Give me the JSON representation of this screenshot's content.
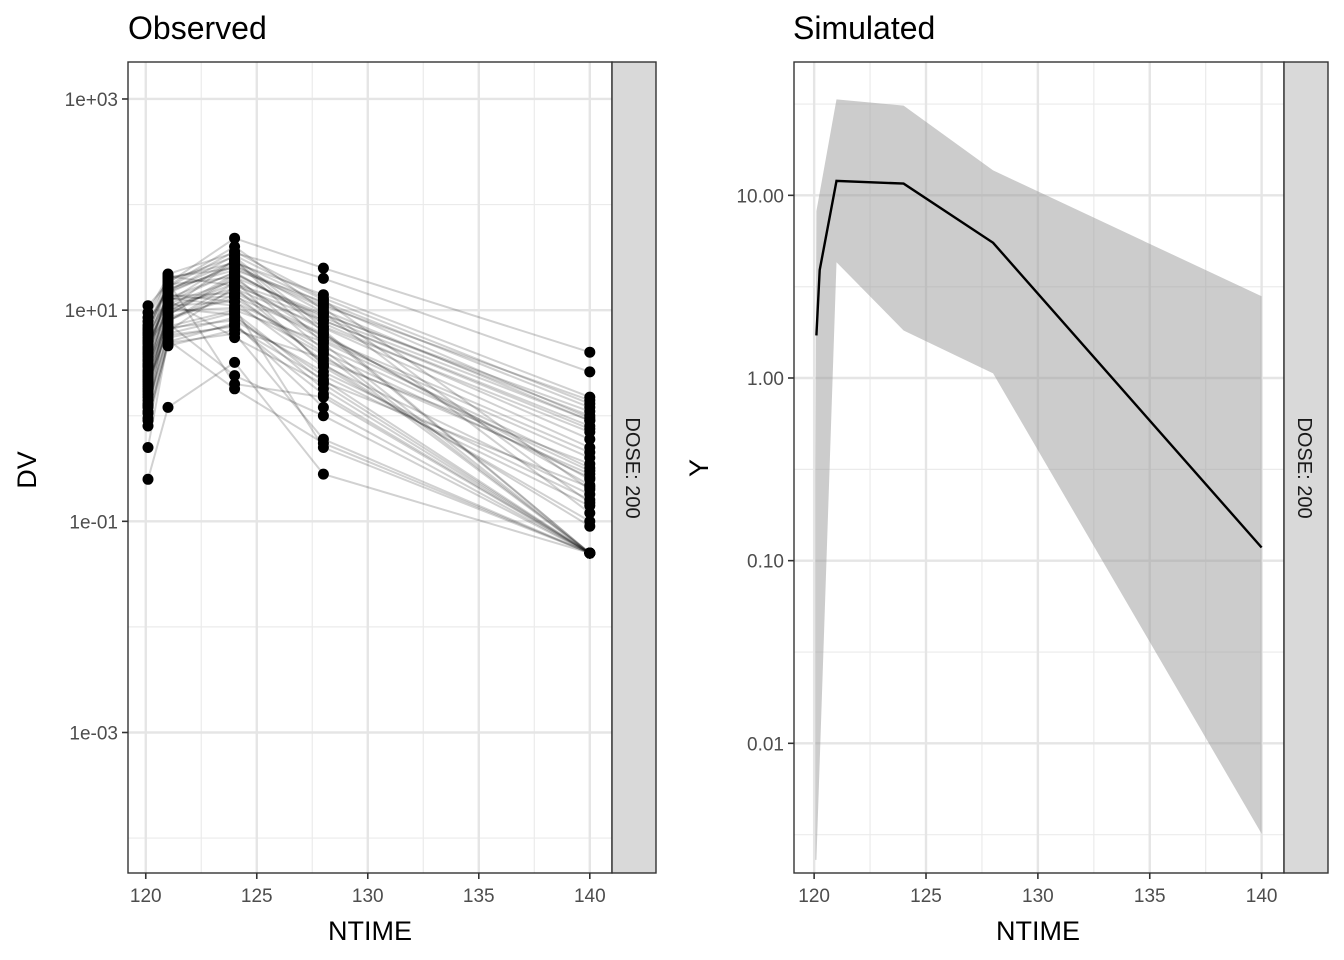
{
  "chart_data": [
    {
      "type": "line",
      "title": "Observed",
      "xlabel": "NTIME",
      "ylabel": "DV",
      "strip_label": "DOSE: 200",
      "yscale": "log10",
      "xlim": [
        119.2,
        141
      ],
      "ylim": [
        4.67e-05,
        2240
      ],
      "x_ticks": [
        120,
        125,
        130,
        135,
        140
      ],
      "x_tick_labels": [
        "120",
        "125",
        "130",
        "135",
        "140"
      ],
      "y_ticks": [
        1000,
        10,
        0.1,
        0.001
      ],
      "y_tick_labels": [
        "1e+03",
        "1e+01",
        "1e-01",
        "1e-03"
      ],
      "y_minor": [
        100,
        1,
        0.01,
        0.0001
      ],
      "x_minor": [
        122.5,
        127.5,
        132.5,
        137.5
      ],
      "grid": true,
      "times": [
        120.1,
        121,
        124,
        128,
        140
      ],
      "subjects": [
        [
          1.8,
          9.5,
          22,
          8.5,
          0.9
        ],
        [
          2.6,
          12,
          30,
          6.2,
          0.05
        ],
        [
          0.25,
          1.2,
          3.2,
          0.28,
          0.05
        ],
        [
          0.5,
          5.2,
          1.8,
          0.55,
          0.05
        ],
        [
          11,
          18,
          48,
          25,
          4.0
        ],
        [
          6.5,
          22,
          35,
          20,
          2.6
        ],
        [
          4.2,
          15,
          26,
          11,
          1.4
        ],
        [
          3.1,
          8,
          14,
          3.3,
          0.35
        ],
        [
          1.2,
          6.5,
          9.5,
          2.1,
          0.21
        ],
        [
          0.9,
          5.5,
          7.2,
          1.6,
          0.05
        ],
        [
          2.2,
          10,
          18,
          9,
          1.1
        ],
        [
          5.5,
          14,
          12,
          4.5,
          0.3
        ],
        [
          1.5,
          7.5,
          2.4,
          1.0,
          0.05
        ],
        [
          8.5,
          20,
          28,
          14,
          1.5
        ],
        [
          3.8,
          11,
          16,
          7,
          0.7
        ],
        [
          2.9,
          13,
          11,
          3.8,
          0.05
        ],
        [
          1.1,
          4.9,
          6.0,
          0.6,
          0.05
        ],
        [
          7.2,
          17,
          40,
          10,
          0.9
        ],
        [
          4.8,
          9,
          20,
          5.5,
          0.45
        ],
        [
          1.9,
          6.8,
          8.0,
          2.6,
          0.16
        ],
        [
          3.4,
          16,
          24,
          12,
          1.2
        ],
        [
          2.4,
          12.5,
          5.5,
          2.0,
          0.05
        ],
        [
          6.0,
          19,
          32,
          6.8,
          0.5
        ],
        [
          1.4,
          8.5,
          13,
          4.0,
          0.26
        ],
        [
          0.8,
          5.0,
          7.5,
          1.2,
          0.05
        ],
        [
          9.5,
          21,
          17,
          8,
          0.8
        ],
        [
          5.0,
          11.5,
          19,
          3.0,
          0.18
        ],
        [
          2.0,
          7.0,
          10,
          5.0,
          0.32
        ],
        [
          3.6,
          14.5,
          27,
          9.5,
          0.12
        ],
        [
          1.6,
          10.5,
          9,
          1.8,
          0.05
        ],
        [
          4.5,
          13.5,
          14.5,
          6.0,
          0.22
        ],
        [
          2.7,
          9.0,
          21,
          4.2,
          0.05
        ],
        [
          6.8,
          16.5,
          36,
          13,
          1.3
        ],
        [
          1.3,
          6.0,
          8.5,
          2.4,
          0.14
        ],
        [
          3.0,
          12.0,
          23,
          7.5,
          0.6
        ],
        [
          5.2,
          18.5,
          2.0,
          1.5,
          0.05
        ],
        [
          0.95,
          4.6,
          6.5,
          3.5,
          0.28
        ],
        [
          2.3,
          8.0,
          15.5,
          5.2,
          0.4
        ],
        [
          7.8,
          15.5,
          29,
          11.5,
          0.95
        ],
        [
          1.7,
          11.0,
          12,
          2.9,
          0.1
        ],
        [
          4.0,
          20.5,
          25,
          10.5,
          0.15
        ],
        [
          2.5,
          7.8,
          18,
          6.5,
          0.05
        ],
        [
          3.3,
          10.0,
          30,
          4.8,
          0.05
        ],
        [
          1.05,
          9.8,
          10.5,
          0.5,
          0.05
        ],
        [
          5.8,
          13.0,
          22.5,
          8.0,
          0.75
        ],
        [
          2.1,
          6.3,
          16.5,
          3.1,
          0.09
        ],
        [
          3.9,
          15.0,
          33,
          12.5,
          0.2
        ],
        [
          1.25,
          5.8,
          7.0,
          2.2,
          0.05
        ],
        [
          6.2,
          17.5,
          20.5,
          9.2,
          1.0
        ],
        [
          4.4,
          12.8,
          13.5,
          5.8,
          0.25
        ]
      ]
    },
    {
      "type": "area",
      "title": "Simulated",
      "xlabel": "NTIME",
      "ylabel": "Y",
      "strip_label": "DOSE: 200",
      "yscale": "log10",
      "xlim": [
        119.1,
        141
      ],
      "ylim": [
        0.00195,
        53.7
      ],
      "x_ticks": [
        120,
        125,
        130,
        135,
        140
      ],
      "x_tick_labels": [
        "120",
        "125",
        "130",
        "135",
        "140"
      ],
      "y_ticks": [
        10,
        1,
        0.1,
        0.01
      ],
      "y_tick_labels": [
        "10.00",
        "1.00",
        "0.10",
        "0.01"
      ],
      "y_minor": [
        31.6,
        3.16,
        0.316,
        0.0316,
        0.00316
      ],
      "x_minor": [
        122.5,
        127.5,
        132.5,
        137.5
      ],
      "grid": true,
      "series": [
        {
          "name": "median",
          "x": [
            120.1,
            120.25,
            121,
            124,
            128,
            140
          ],
          "values": [
            1.71,
            3.9,
            12.0,
            11.6,
            5.5,
            0.118
          ]
        },
        {
          "name": "interval",
          "x": [
            120.05,
            120.1,
            121,
            124,
            128,
            140
          ],
          "upper": [
            0.3,
            8.2,
            33.5,
            31.0,
            13.7,
            2.8
          ],
          "lower": [
            0.0023,
            0.0023,
            4.3,
            1.82,
            1.06,
            0.0032
          ]
        }
      ]
    }
  ]
}
